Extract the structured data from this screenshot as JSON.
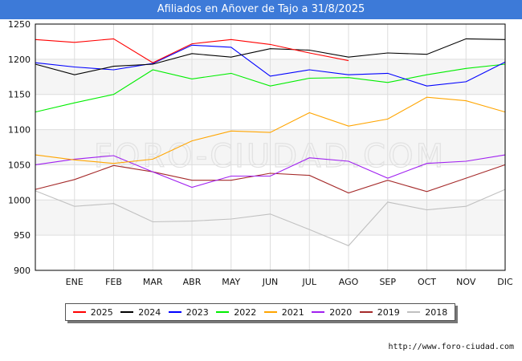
{
  "header": {
    "title": "Afiliados en Añover de Tajo a 31/8/2025"
  },
  "footer": {
    "url": "http://www.foro-ciudad.com"
  },
  "watermark": "FORO-CIUDAD.COM",
  "chart_data": {
    "type": "line",
    "title": "Afiliados en Añover de Tajo a 31/8/2025",
    "xlabel": "",
    "ylabel": "",
    "categories": [
      "",
      "ENE",
      "FEB",
      "MAR",
      "ABR",
      "MAY",
      "JUN",
      "JUL",
      "AGO",
      "SEP",
      "OCT",
      "NOV",
      "DIC"
    ],
    "ylim": [
      900,
      1250
    ],
    "yticks": [
      900,
      950,
      1000,
      1050,
      1100,
      1150,
      1200,
      1250
    ],
    "grid": true,
    "legend_position": "bottom",
    "series": [
      {
        "name": "2025",
        "color": "#ff0000",
        "values": [
          1228,
          1224,
          1229,
          1195,
          1222,
          1228,
          1221,
          1209,
          1198,
          null,
          null,
          null,
          null
        ]
      },
      {
        "name": "2024",
        "color": "#000000",
        "values": [
          1193,
          1178,
          1190,
          1193,
          1208,
          1203,
          1215,
          1213,
          1203,
          1209,
          1207,
          1229,
          1228
        ]
      },
      {
        "name": "2023",
        "color": "#0000ff",
        "values": [
          1195,
          1189,
          1185,
          1194,
          1220,
          1217,
          1176,
          1185,
          1178,
          1180,
          1162,
          1168,
          1196
        ]
      },
      {
        "name": "2022",
        "color": "#00ee00",
        "values": [
          1125,
          1138,
          1150,
          1185,
          1172,
          1180,
          1162,
          1173,
          1174,
          1167,
          1178,
          1187,
          1193
        ]
      },
      {
        "name": "2021",
        "color": "#ffa500",
        "values": [
          1064,
          1057,
          1052,
          1058,
          1084,
          1098,
          1096,
          1124,
          1105,
          1115,
          1146,
          1141,
          1125
        ]
      },
      {
        "name": "2020",
        "color": "#a020f0",
        "values": [
          1050,
          1058,
          1063,
          1040,
          1018,
          1034,
          1034,
          1060,
          1055,
          1031,
          1052,
          1055,
          1064
        ]
      },
      {
        "name": "2019",
        "color": "#a52a2a",
        "values": [
          1015,
          1029,
          1049,
          1040,
          1028,
          1028,
          1038,
          1035,
          1010,
          1028,
          1012,
          1031,
          1050
        ]
      },
      {
        "name": "2018",
        "color": "#c0c0c0",
        "values": [
          1013,
          991,
          995,
          969,
          970,
          973,
          980,
          958,
          935,
          997,
          986,
          991,
          1015
        ]
      }
    ]
  }
}
